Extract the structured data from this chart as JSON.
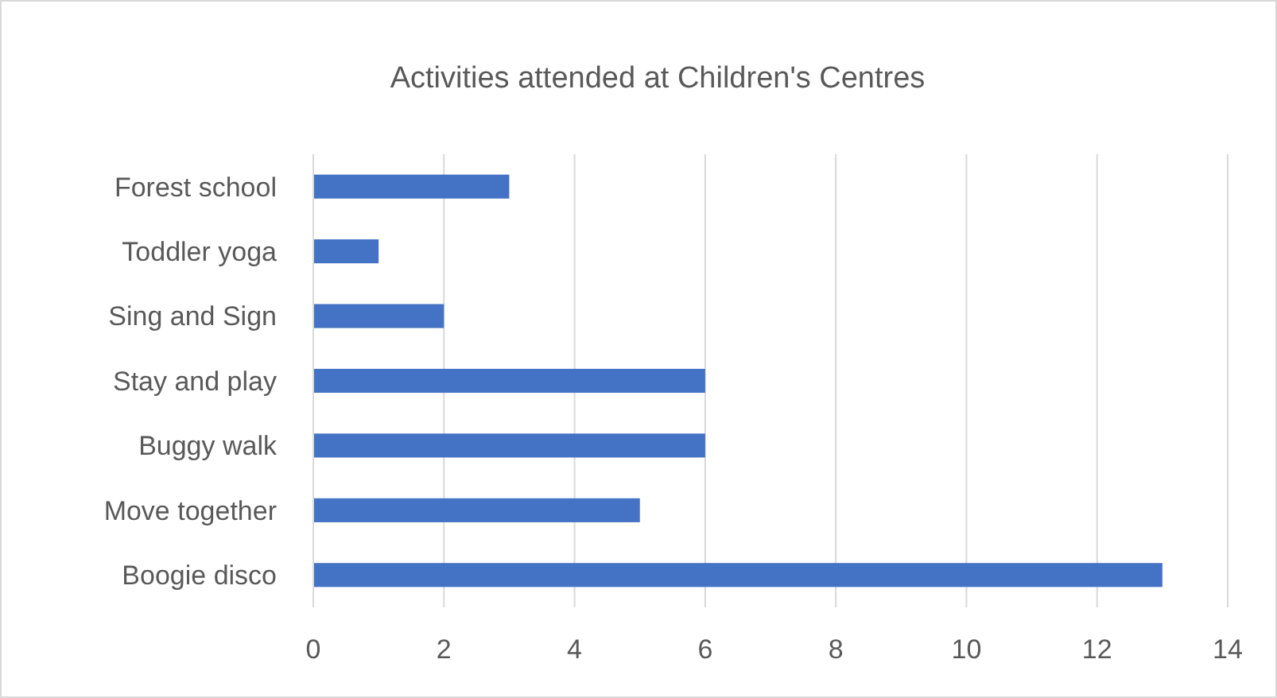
{
  "chart_data": {
    "type": "bar",
    "orientation": "horizontal",
    "title": "Activities attended at Children's Centres",
    "categories": [
      "Forest school",
      "Toddler yoga",
      "Sing and Sign",
      "Stay and play",
      "Buggy walk",
      "Move together",
      "Boogie disco"
    ],
    "values": [
      3,
      1,
      2,
      6,
      6,
      5,
      13
    ],
    "color": "#4472c4",
    "xlim": [
      0,
      14
    ],
    "xticks": [
      0,
      2,
      4,
      6,
      8,
      10,
      12,
      14
    ],
    "grid": "x"
  }
}
